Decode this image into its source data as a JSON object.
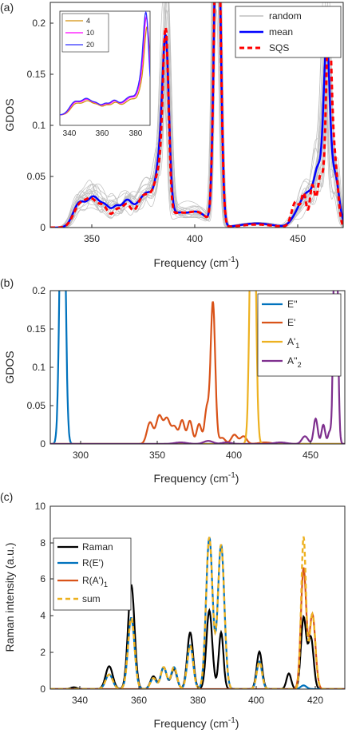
{
  "chart_data": [
    {
      "type": "line",
      "panel_label": "(a)",
      "xlabel": "Frequency (cm",
      "xlabel_sup": "-1",
      "xlabel_end": ")",
      "ylabel": "GDOS",
      "xlim": [
        330,
        472
      ],
      "ylim": [
        0,
        0.22
      ],
      "xticks": [
        "350",
        "400",
        "450"
      ],
      "yticks": [
        "0",
        "0.05",
        "0.1",
        "0.15",
        "0.2"
      ],
      "legend": {
        "placement": "top-right",
        "entries": [
          "random",
          "mean",
          "SQS"
        ]
      },
      "colors": {
        "random": "#bfbfbf",
        "mean": "#0000ff",
        "SQS": "#ff0000"
      },
      "series": [
        {
          "name": "mean",
          "peaks": [
            [
              344,
              0.023,
              3
            ],
            [
              351,
              0.028,
              3
            ],
            [
              357,
              0.018,
              2.5
            ],
            [
              362,
              0.016,
              2
            ],
            [
              367,
              0.024,
              2.5
            ],
            [
              373,
              0.018,
              3
            ],
            [
              378,
              0.028,
              3
            ],
            [
              383,
              0.05,
              2
            ],
            [
              386,
              0.165,
              1.6
            ],
            [
              391,
              0.012,
              4
            ],
            [
              401,
              0.015,
              5
            ],
            [
              411,
              0.35,
              1.5
            ],
            [
              430,
              0.004,
              8
            ],
            [
              450,
              0.012,
              3
            ],
            [
              455,
              0.03,
              3
            ],
            [
              460,
              0.05,
              2
            ],
            [
              464,
              0.17,
              1.5
            ],
            [
              468,
              0.05,
              2
            ]
          ]
        },
        {
          "name": "SQS",
          "peaks": [
            [
              344,
              0.02,
              3
            ],
            [
              350,
              0.025,
              3
            ],
            [
              356,
              0.018,
              2.5
            ],
            [
              362,
              0.014,
              2
            ],
            [
              367,
              0.022,
              2.5
            ],
            [
              374,
              0.022,
              2.5
            ],
            [
              379,
              0.027,
              3
            ],
            [
              383,
              0.04,
              2
            ],
            [
              386,
              0.175,
              1.4
            ],
            [
              391,
              0.012,
              4
            ],
            [
              401,
              0.015,
              5
            ],
            [
              411,
              0.35,
              1.5
            ],
            [
              430,
              0.003,
              8
            ],
            [
              449,
              0.025,
              2
            ],
            [
              453,
              0.03,
              1.2
            ],
            [
              457,
              0.04,
              1.2
            ],
            [
              461,
              0.05,
              1.5
            ],
            [
              465,
              0.2,
              1.3
            ],
            [
              468,
              0.06,
              1.5
            ]
          ]
        }
      ],
      "inset": {
        "xlim": [
          335,
          388
        ],
        "xticks": [
          "340",
          "360",
          "380"
        ],
        "legend": [
          "4",
          "10",
          "20"
        ],
        "colors": [
          "#d4900a",
          "#ff00ff",
          "#3030ff"
        ]
      }
    },
    {
      "type": "line",
      "panel_label": "(b)",
      "xlabel": "Frequency (cm",
      "xlabel_sup": "-1",
      "xlabel_end": ")",
      "ylabel": "GDOS",
      "xlim": [
        280,
        472
      ],
      "ylim": [
        0,
        0.2
      ],
      "xticks": [
        "300",
        "350",
        "400",
        "450"
      ],
      "yticks": [
        "0",
        "0.05",
        "0.1",
        "0.15",
        "0.2"
      ],
      "legend": {
        "placement": "top-right",
        "entries": [
          "E''",
          "E'",
          "A'",
          "A''"
        ],
        "subscripts": [
          "",
          "",
          "1",
          "2"
        ]
      },
      "colors": [
        "#0072bd",
        "#d95319",
        "#edb120",
        "#7e2f8e"
      ],
      "series": [
        {
          "name": "E''",
          "peaks": [
            [
              288,
              0.5,
              1.6
            ]
          ]
        },
        {
          "name": "E'",
          "peaks": [
            [
              345,
              0.028,
              2
            ],
            [
              351,
              0.036,
              2
            ],
            [
              356,
              0.032,
              2
            ],
            [
              361,
              0.022,
              2
            ],
            [
              366,
              0.03,
              1.6
            ],
            [
              371,
              0.03,
              1.6
            ],
            [
              377,
              0.026,
              1.6
            ],
            [
              382,
              0.045,
              1.4
            ],
            [
              386,
              0.185,
              1.5
            ],
            [
              392,
              0.008,
              2
            ],
            [
              400,
              0.012,
              2
            ],
            [
              406,
              0.01,
              2
            ],
            [
              420,
              0.002,
              4
            ]
          ]
        },
        {
          "name": "A'",
          "peaks": [
            [
              412,
              0.5,
              1.6
            ]
          ]
        },
        {
          "name": "A''",
          "peaks": [
            [
              365,
              0.002,
              4
            ],
            [
              383,
              0.004,
              3
            ],
            [
              395,
              0.002,
              3
            ],
            [
              430,
              0.002,
              4
            ],
            [
              446,
              0.01,
              2
            ],
            [
              453,
              0.033,
              1.3
            ],
            [
              458,
              0.025,
              1.2
            ],
            [
              462,
              0.015,
              1
            ],
            [
              466,
              0.4,
              1.2
            ]
          ]
        }
      ]
    },
    {
      "type": "line",
      "panel_label": "(c)",
      "xlabel": "Frequency (cm",
      "xlabel_sup": "-1",
      "xlabel_end": ")",
      "ylabel": "Raman intensity (a.u.)",
      "xlim": [
        330,
        430
      ],
      "ylim": [
        0,
        10
      ],
      "xticks": [
        "340",
        "360",
        "380",
        "400",
        "420"
      ],
      "yticks": [
        "0",
        "2",
        "4",
        "6",
        "8",
        "10"
      ],
      "legend": {
        "placement": "top-left",
        "entries": [
          "Raman",
          "R(E')",
          "R(A')",
          "sum"
        ],
        "subscripts": [
          "",
          "",
          "1",
          ""
        ]
      },
      "colors": [
        "#000000",
        "#0072bd",
        "#d95319",
        "#edb120"
      ],
      "series": [
        {
          "name": "Raman",
          "peaks": [
            [
              338,
              0.1,
              1
            ],
            [
              350,
              1.25,
              1.2
            ],
            [
              357.5,
              5.7,
              1.1
            ],
            [
              365,
              0.7,
              1
            ],
            [
              368.5,
              1.2,
              1
            ],
            [
              372,
              1.1,
              1
            ],
            [
              377.5,
              3.1,
              1
            ],
            [
              384,
              4.3,
              1
            ],
            [
              388,
              3.1,
              0.8
            ],
            [
              401,
              2.05,
              0.9
            ],
            [
              411,
              0.85,
              0.8
            ],
            [
              416,
              3.9,
              0.9
            ],
            [
              418.5,
              2.8,
              0.9
            ]
          ]
        },
        {
          "name": "R(E')",
          "peaks": [
            [
              350,
              0.8,
              1.2
            ],
            [
              357.5,
              3.9,
              1.1
            ],
            [
              365,
              0.6,
              1
            ],
            [
              368.5,
              1.2,
              1
            ],
            [
              372,
              1.2,
              1
            ],
            [
              377.5,
              2.4,
              1
            ],
            [
              384,
              8.3,
              1.1
            ],
            [
              388,
              7.9,
              1.1
            ],
            [
              401,
              1.5,
              0.9
            ],
            [
              416,
              0.2,
              1
            ]
          ]
        },
        {
          "name": "R(A')",
          "peaks": [
            [
              416,
              6.6,
              0.9
            ],
            [
              419,
              4.1,
              1
            ]
          ]
        },
        {
          "name": "sum",
          "peaks": [
            [
              350,
              0.8,
              1.2
            ],
            [
              357.5,
              3.9,
              1.1
            ],
            [
              365,
              0.6,
              1
            ],
            [
              368.5,
              1.2,
              1
            ],
            [
              372,
              1.2,
              1
            ],
            [
              377.5,
              2.4,
              1
            ],
            [
              384,
              8.3,
              1.1
            ],
            [
              388,
              7.9,
              1.1
            ],
            [
              401,
              1.5,
              0.9
            ],
            [
              416,
              8.3,
              0.8
            ],
            [
              419,
              4.1,
              1
            ]
          ]
        }
      ]
    }
  ]
}
